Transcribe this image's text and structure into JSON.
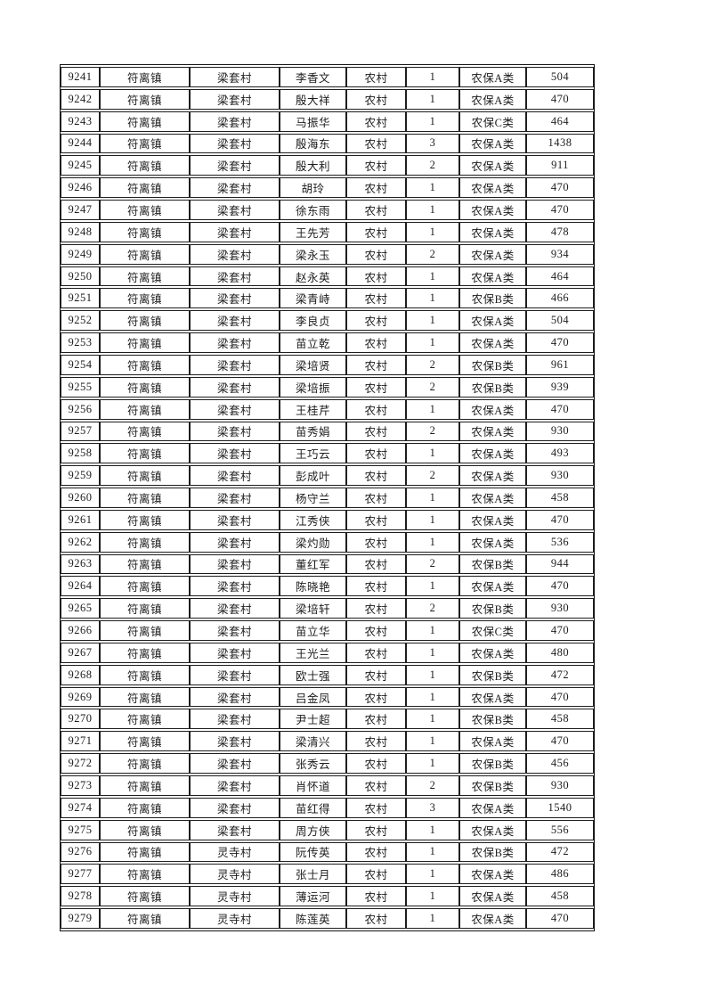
{
  "document": {
    "kind": "insurance-roster-table-page",
    "visible_serial_range": {
      "first": "9241",
      "last": "9279"
    }
  },
  "table": {
    "fields": [
      "serial_no",
      "town",
      "village",
      "name",
      "category",
      "count",
      "insurance_type",
      "amount"
    ],
    "rows": [
      [
        "9241",
        "符离镇",
        "梁套村",
        "李香文",
        "农村",
        "1",
        "农保A类",
        "504"
      ],
      [
        "9242",
        "符离镇",
        "梁套村",
        "殷大祥",
        "农村",
        "1",
        "农保A类",
        "470"
      ],
      [
        "9243",
        "符离镇",
        "梁套村",
        "马振华",
        "农村",
        "1",
        "农保C类",
        "464"
      ],
      [
        "9244",
        "符离镇",
        "梁套村",
        "殷海东",
        "农村",
        "3",
        "农保A类",
        "1438"
      ],
      [
        "9245",
        "符离镇",
        "梁套村",
        "殷大利",
        "农村",
        "2",
        "农保A类",
        "911"
      ],
      [
        "9246",
        "符离镇",
        "梁套村",
        "胡玲",
        "农村",
        "1",
        "农保A类",
        "470"
      ],
      [
        "9247",
        "符离镇",
        "梁套村",
        "徐东雨",
        "农村",
        "1",
        "农保A类",
        "470"
      ],
      [
        "9248",
        "符离镇",
        "梁套村",
        "王先芳",
        "农村",
        "1",
        "农保A类",
        "478"
      ],
      [
        "9249",
        "符离镇",
        "梁套村",
        "梁永玉",
        "农村",
        "2",
        "农保A类",
        "934"
      ],
      [
        "9250",
        "符离镇",
        "梁套村",
        "赵永英",
        "农村",
        "1",
        "农保A类",
        "464"
      ],
      [
        "9251",
        "符离镇",
        "梁套村",
        "梁青峙",
        "农村",
        "1",
        "农保B类",
        "466"
      ],
      [
        "9252",
        "符离镇",
        "梁套村",
        "李良贞",
        "农村",
        "1",
        "农保A类",
        "504"
      ],
      [
        "9253",
        "符离镇",
        "梁套村",
        "苗立乾",
        "农村",
        "1",
        "农保A类",
        "470"
      ],
      [
        "9254",
        "符离镇",
        "梁套村",
        "梁培贤",
        "农村",
        "2",
        "农保B类",
        "961"
      ],
      [
        "9255",
        "符离镇",
        "梁套村",
        "梁培振",
        "农村",
        "2",
        "农保B类",
        "939"
      ],
      [
        "9256",
        "符离镇",
        "梁套村",
        "王桂芹",
        "农村",
        "1",
        "农保A类",
        "470"
      ],
      [
        "9257",
        "符离镇",
        "梁套村",
        "苗秀娟",
        "农村",
        "2",
        "农保A类",
        "930"
      ],
      [
        "9258",
        "符离镇",
        "梁套村",
        "王巧云",
        "农村",
        "1",
        "农保A类",
        "493"
      ],
      [
        "9259",
        "符离镇",
        "梁套村",
        "彭成叶",
        "农村",
        "2",
        "农保A类",
        "930"
      ],
      [
        "9260",
        "符离镇",
        "梁套村",
        "杨守兰",
        "农村",
        "1",
        "农保A类",
        "458"
      ],
      [
        "9261",
        "符离镇",
        "梁套村",
        "江秀侠",
        "农村",
        "1",
        "农保A类",
        "470"
      ],
      [
        "9262",
        "符离镇",
        "梁套村",
        "梁灼勋",
        "农村",
        "1",
        "农保A类",
        "536"
      ],
      [
        "9263",
        "符离镇",
        "梁套村",
        "董红军",
        "农村",
        "2",
        "农保B类",
        "944"
      ],
      [
        "9264",
        "符离镇",
        "梁套村",
        "陈晓艳",
        "农村",
        "1",
        "农保A类",
        "470"
      ],
      [
        "9265",
        "符离镇",
        "梁套村",
        "梁培轩",
        "农村",
        "2",
        "农保B类",
        "930"
      ],
      [
        "9266",
        "符离镇",
        "梁套村",
        "苗立华",
        "农村",
        "1",
        "农保C类",
        "470"
      ],
      [
        "9267",
        "符离镇",
        "梁套村",
        "王光兰",
        "农村",
        "1",
        "农保A类",
        "480"
      ],
      [
        "9268",
        "符离镇",
        "梁套村",
        "欧士强",
        "农村",
        "1",
        "农保B类",
        "472"
      ],
      [
        "9269",
        "符离镇",
        "梁套村",
        "吕金凤",
        "农村",
        "1",
        "农保A类",
        "470"
      ],
      [
        "9270",
        "符离镇",
        "梁套村",
        "尹士超",
        "农村",
        "1",
        "农保B类",
        "458"
      ],
      [
        "9271",
        "符离镇",
        "梁套村",
        "梁清兴",
        "农村",
        "1",
        "农保A类",
        "470"
      ],
      [
        "9272",
        "符离镇",
        "梁套村",
        "张秀云",
        "农村",
        "1",
        "农保B类",
        "456"
      ],
      [
        "9273",
        "符离镇",
        "梁套村",
        "肖怀道",
        "农村",
        "2",
        "农保B类",
        "930"
      ],
      [
        "9274",
        "符离镇",
        "梁套村",
        "苗红得",
        "农村",
        "3",
        "农保A类",
        "1540"
      ],
      [
        "9275",
        "符离镇",
        "梁套村",
        "周方侠",
        "农村",
        "1",
        "农保A类",
        "556"
      ],
      [
        "9276",
        "符离镇",
        "灵寺村",
        "阮传英",
        "农村",
        "1",
        "农保B类",
        "472"
      ],
      [
        "9277",
        "符离镇",
        "灵寺村",
        "张士月",
        "农村",
        "1",
        "农保A类",
        "486"
      ],
      [
        "9278",
        "符离镇",
        "灵寺村",
        "薄运河",
        "农村",
        "1",
        "农保A类",
        "458"
      ],
      [
        "9279",
        "符离镇",
        "灵寺村",
        "陈莲英",
        "农村",
        "1",
        "农保A类",
        "470"
      ]
    ]
  },
  "colors": {
    "page_background": "#ffffff",
    "grid_line": "#1e1e1e",
    "text": "#1c1c1c"
  }
}
